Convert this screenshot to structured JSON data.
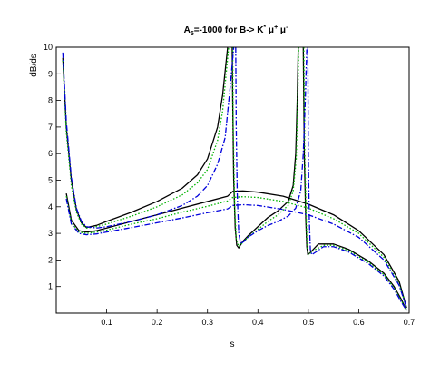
{
  "chart_data": {
    "type": "line",
    "title_parts": {
      "a_symbol": "A",
      "a_subscript": "5",
      "a_rest": "=-1000 for  B-> K",
      "k_sup": "*",
      "mu1": " μ",
      "mu1_sup": "+",
      "mu2": " μ",
      "mu2_sup": "-"
    },
    "xlabel": "s",
    "ylabel": "dB/ds",
    "xlim": [
      0.0,
      0.7
    ],
    "ylim": [
      0,
      10
    ],
    "x_ticks": [
      0.1,
      0.2,
      0.3,
      0.4,
      0.5,
      0.6,
      0.7
    ],
    "x_tick_labels": [
      "0.1",
      "0.2",
      "0.3",
      "0.4",
      "0.5",
      "0.6",
      "0.7"
    ],
    "y_ticks": [
      1,
      2,
      3,
      4,
      5,
      6,
      7,
      8,
      9,
      10
    ],
    "y_tick_labels": [
      "1",
      "2",
      "3",
      "4",
      "5",
      "6",
      "7",
      "8",
      "9",
      "10"
    ],
    "grid": false,
    "series": [
      {
        "color": "#000000",
        "dash": "",
        "segments": [
          [
            [
              0.013,
              9.6
            ],
            [
              0.02,
              7.0
            ],
            [
              0.03,
              5.0
            ],
            [
              0.04,
              3.9
            ],
            [
              0.05,
              3.4
            ],
            [
              0.06,
              3.22
            ],
            [
              0.08,
              3.3
            ],
            [
              0.1,
              3.45
            ],
            [
              0.15,
              3.8
            ],
            [
              0.2,
              4.2
            ],
            [
              0.25,
              4.7
            ],
            [
              0.28,
              5.2
            ],
            [
              0.3,
              5.8
            ],
            [
              0.32,
              7.0
            ],
            [
              0.33,
              8.2
            ],
            [
              0.34,
              10.0
            ]
          ],
          [
            [
              0.349,
              10.0
            ],
            [
              0.35,
              8.0
            ],
            [
              0.352,
              5.0
            ],
            [
              0.355,
              3.2
            ],
            [
              0.358,
              2.55
            ],
            [
              0.362,
              2.45
            ],
            [
              0.37,
              2.7
            ],
            [
              0.38,
              2.9
            ],
            [
              0.4,
              3.25
            ],
            [
              0.42,
              3.6
            ],
            [
              0.44,
              3.85
            ],
            [
              0.46,
              4.2
            ],
            [
              0.47,
              4.8
            ],
            [
              0.475,
              6.0
            ],
            [
              0.478,
              8.0
            ],
            [
              0.48,
              10.0
            ]
          ],
          [
            [
              0.49,
              10.0
            ],
            [
              0.492,
              6.0
            ],
            [
              0.495,
              3.5
            ],
            [
              0.497,
              2.5
            ],
            [
              0.499,
              2.2
            ],
            [
              0.505,
              2.3
            ],
            [
              0.52,
              2.6
            ],
            [
              0.55,
              2.6
            ],
            [
              0.58,
              2.4
            ],
            [
              0.62,
              1.95
            ],
            [
              0.65,
              1.5
            ],
            [
              0.67,
              1.0
            ],
            [
              0.685,
              0.5
            ],
            [
              0.695,
              0.1
            ]
          ],
          [
            [
              0.02,
              4.5
            ],
            [
              0.03,
              3.5
            ],
            [
              0.045,
              3.1
            ],
            [
              0.06,
              3.05
            ],
            [
              0.08,
              3.1
            ],
            [
              0.1,
              3.2
            ],
            [
              0.15,
              3.45
            ],
            [
              0.2,
              3.7
            ],
            [
              0.25,
              3.95
            ],
            [
              0.3,
              4.2
            ],
            [
              0.34,
              4.4
            ],
            [
              0.35,
              4.58
            ],
            [
              0.37,
              4.6
            ],
            [
              0.4,
              4.55
            ],
            [
              0.45,
              4.4
            ],
            [
              0.5,
              4.1
            ],
            [
              0.55,
              3.7
            ],
            [
              0.6,
              3.1
            ],
            [
              0.65,
              2.2
            ],
            [
              0.68,
              1.2
            ],
            [
              0.695,
              0.2
            ]
          ]
        ]
      },
      {
        "color": "#00b400",
        "dash": "1.5,2",
        "segments": [
          [
            [
              0.013,
              9.5
            ],
            [
              0.02,
              6.8
            ],
            [
              0.03,
              4.8
            ],
            [
              0.04,
              3.8
            ],
            [
              0.05,
              3.35
            ],
            [
              0.06,
              3.2
            ],
            [
              0.08,
              3.25
            ],
            [
              0.1,
              3.35
            ],
            [
              0.15,
              3.65
            ],
            [
              0.2,
              4.0
            ],
            [
              0.25,
              4.45
            ],
            [
              0.28,
              4.9
            ],
            [
              0.3,
              5.4
            ],
            [
              0.32,
              6.5
            ],
            [
              0.33,
              7.6
            ],
            [
              0.342,
              10.0
            ]
          ],
          [
            [
              0.35,
              10.0
            ],
            [
              0.351,
              7.0
            ],
            [
              0.354,
              4.0
            ],
            [
              0.357,
              2.8
            ],
            [
              0.362,
              2.5
            ],
            [
              0.37,
              2.65
            ],
            [
              0.38,
              2.85
            ],
            [
              0.4,
              3.15
            ],
            [
              0.42,
              3.45
            ],
            [
              0.44,
              3.7
            ],
            [
              0.46,
              4.05
            ],
            [
              0.47,
              4.6
            ],
            [
              0.476,
              5.8
            ],
            [
              0.479,
              8.0
            ],
            [
              0.481,
              10.0
            ]
          ],
          [
            [
              0.491,
              10.0
            ],
            [
              0.493,
              6.0
            ],
            [
              0.496,
              3.4
            ],
            [
              0.498,
              2.4
            ],
            [
              0.5,
              2.2
            ],
            [
              0.51,
              2.35
            ],
            [
              0.53,
              2.55
            ],
            [
              0.55,
              2.55
            ],
            [
              0.58,
              2.35
            ],
            [
              0.62,
              1.9
            ],
            [
              0.65,
              1.45
            ],
            [
              0.67,
              0.95
            ],
            [
              0.685,
              0.45
            ],
            [
              0.695,
              0.1
            ]
          ],
          [
            [
              0.02,
              4.4
            ],
            [
              0.03,
              3.4
            ],
            [
              0.045,
              3.05
            ],
            [
              0.06,
              3.0
            ],
            [
              0.08,
              3.05
            ],
            [
              0.1,
              3.12
            ],
            [
              0.15,
              3.35
            ],
            [
              0.2,
              3.55
            ],
            [
              0.25,
              3.8
            ],
            [
              0.3,
              4.02
            ],
            [
              0.34,
              4.22
            ],
            [
              0.35,
              4.35
            ],
            [
              0.37,
              4.38
            ],
            [
              0.4,
              4.35
            ],
            [
              0.45,
              4.2
            ],
            [
              0.5,
              3.95
            ],
            [
              0.55,
              3.55
            ],
            [
              0.6,
              3.0
            ],
            [
              0.65,
              2.1
            ],
            [
              0.68,
              1.1
            ],
            [
              0.695,
              0.2
            ]
          ]
        ]
      },
      {
        "color": "#0000dc",
        "dash": "6,2,1.5,2",
        "segments": [
          [
            [
              0.013,
              9.8
            ],
            [
              0.02,
              7.2
            ],
            [
              0.03,
              5.1
            ],
            [
              0.04,
              3.95
            ],
            [
              0.05,
              3.45
            ],
            [
              0.06,
              3.25
            ],
            [
              0.08,
              3.2
            ],
            [
              0.1,
              3.25
            ],
            [
              0.15,
              3.45
            ],
            [
              0.2,
              3.7
            ],
            [
              0.25,
              4.05
            ],
            [
              0.28,
              4.4
            ],
            [
              0.3,
              4.8
            ],
            [
              0.32,
              5.6
            ],
            [
              0.335,
              6.6
            ],
            [
              0.345,
              8.5
            ],
            [
              0.352,
              10.0
            ]
          ],
          [
            [
              0.356,
              10.0
            ],
            [
              0.357,
              7.0
            ],
            [
              0.359,
              4.5
            ],
            [
              0.362,
              3.0
            ],
            [
              0.366,
              2.6
            ],
            [
              0.372,
              2.7
            ],
            [
              0.38,
              2.85
            ],
            [
              0.4,
              3.1
            ],
            [
              0.42,
              3.3
            ],
            [
              0.44,
              3.45
            ],
            [
              0.46,
              3.65
            ],
            [
              0.475,
              3.95
            ],
            [
              0.485,
              4.6
            ],
            [
              0.49,
              6.0
            ],
            [
              0.494,
              8.0
            ],
            [
              0.497,
              10.0
            ]
          ],
          [
            [
              0.499,
              10.0
            ],
            [
              0.5,
              6.0
            ],
            [
              0.502,
              3.5
            ],
            [
              0.504,
              2.4
            ],
            [
              0.507,
              2.2
            ],
            [
              0.515,
              2.3
            ],
            [
              0.53,
              2.5
            ],
            [
              0.55,
              2.5
            ],
            [
              0.58,
              2.3
            ],
            [
              0.62,
              1.85
            ],
            [
              0.65,
              1.4
            ],
            [
              0.67,
              0.9
            ],
            [
              0.685,
              0.4
            ],
            [
              0.695,
              0.1
            ]
          ],
          [
            [
              0.02,
              4.3
            ],
            [
              0.03,
              3.35
            ],
            [
              0.045,
              3.0
            ],
            [
              0.06,
              2.95
            ],
            [
              0.08,
              2.98
            ],
            [
              0.1,
              3.05
            ],
            [
              0.15,
              3.22
            ],
            [
              0.2,
              3.4
            ],
            [
              0.25,
              3.58
            ],
            [
              0.3,
              3.78
            ],
            [
              0.34,
              3.92
            ],
            [
              0.35,
              4.05
            ],
            [
              0.37,
              4.08
            ],
            [
              0.4,
              4.05
            ],
            [
              0.45,
              3.9
            ],
            [
              0.5,
              3.7
            ],
            [
              0.55,
              3.35
            ],
            [
              0.6,
              2.85
            ],
            [
              0.65,
              2.0
            ],
            [
              0.68,
              1.05
            ],
            [
              0.695,
              0.2
            ]
          ]
        ]
      }
    ]
  }
}
